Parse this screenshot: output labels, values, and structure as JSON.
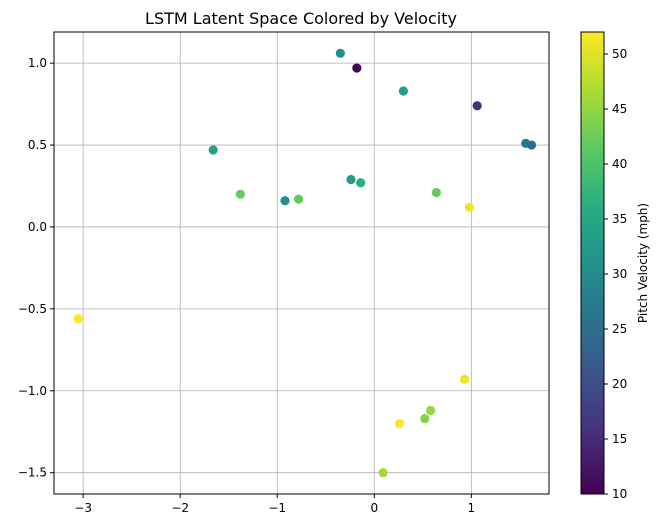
{
  "chart_data": {
    "type": "scatter",
    "title": "LSTM Latent Space Colored by Velocity",
    "xlabel": "",
    "ylabel": "",
    "xlim": [
      -3.3,
      1.8
    ],
    "ylim": [
      -1.63,
      1.19
    ],
    "xticks": [
      -3,
      -2,
      -1,
      0,
      1
    ],
    "xtick_labels": [
      "−3",
      "−2",
      "−1",
      "0",
      "1"
    ],
    "yticks": [
      -1.5,
      -1.0,
      -0.5,
      0.0,
      0.5,
      1.0
    ],
    "ytick_labels": [
      "−1.5",
      "−1.0",
      "−0.5",
      "0.0",
      "0.5",
      "1.0"
    ],
    "grid": true,
    "colormap": "viridis",
    "colorbar": {
      "label": "Pitch Velocity (mph)",
      "range": [
        10,
        52
      ],
      "ticks": [
        10,
        15,
        20,
        25,
        30,
        35,
        40,
        45,
        50
      ],
      "tick_labels": [
        "10",
        "15",
        "20",
        "25",
        "30",
        "35",
        "40",
        "45",
        "50"
      ]
    },
    "points": [
      {
        "x": -0.35,
        "y": 1.06,
        "v": 30
      },
      {
        "x": -0.18,
        "y": 0.97,
        "v": 10
      },
      {
        "x": 0.3,
        "y": 0.83,
        "v": 33
      },
      {
        "x": 1.06,
        "y": 0.74,
        "v": 16
      },
      {
        "x": 1.56,
        "y": 0.51,
        "v": 27
      },
      {
        "x": 1.62,
        "y": 0.5,
        "v": 25
      },
      {
        "x": -1.66,
        "y": 0.47,
        "v": 34
      },
      {
        "x": -0.24,
        "y": 0.29,
        "v": 33
      },
      {
        "x": -0.14,
        "y": 0.27,
        "v": 36
      },
      {
        "x": -1.38,
        "y": 0.2,
        "v": 42
      },
      {
        "x": -0.78,
        "y": 0.17,
        "v": 42
      },
      {
        "x": -0.92,
        "y": 0.16,
        "v": 31
      },
      {
        "x": 0.64,
        "y": 0.21,
        "v": 42
      },
      {
        "x": 0.98,
        "y": 0.12,
        "v": 51
      },
      {
        "x": -3.05,
        "y": -0.56,
        "v": 52
      },
      {
        "x": 0.93,
        "y": -0.93,
        "v": 51
      },
      {
        "x": 0.58,
        "y": -1.12,
        "v": 45
      },
      {
        "x": 0.52,
        "y": -1.17,
        "v": 44
      },
      {
        "x": 0.26,
        "y": -1.2,
        "v": 52
      },
      {
        "x": 0.09,
        "y": -1.5,
        "v": 46
      }
    ]
  }
}
